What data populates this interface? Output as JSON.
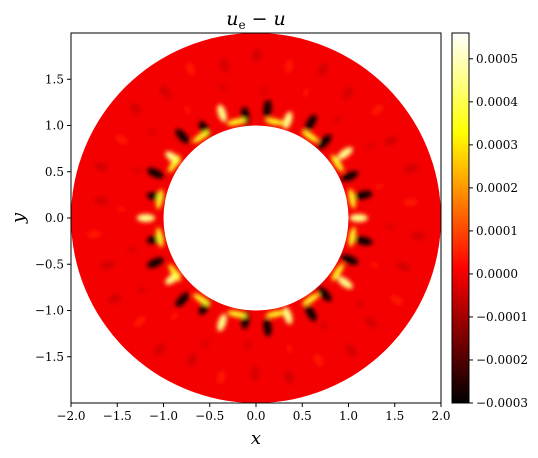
{
  "chart_data": {
    "type": "heatmap",
    "title": "u_e − u",
    "title_main": "u",
    "title_sub": "e",
    "title_rest": " − u",
    "xlabel": "x",
    "ylabel": "y",
    "xlim": [
      -2.0,
      2.0
    ],
    "ylim": [
      -2.0,
      2.0
    ],
    "x_ticks": [
      -2.0,
      -1.5,
      -1.0,
      -0.5,
      0.0,
      0.5,
      1.0,
      1.5,
      2.0
    ],
    "x_tick_labels": [
      "−2.0",
      "−1.5",
      "−1.0",
      "−0.5",
      "0.0",
      "0.5",
      "1.0",
      "1.5",
      "2.0"
    ],
    "y_ticks": [
      -1.5,
      -1.0,
      -0.5,
      0.0,
      0.5,
      1.0,
      1.5
    ],
    "y_tick_labels": [
      "−1.5",
      "−1.0",
      "−0.5",
      "0.0",
      "0.5",
      "1.0",
      "1.5"
    ],
    "domain": {
      "shape": "annulus",
      "inner_radius": 1.0,
      "outer_radius": 2.0,
      "center": [
        0.0,
        0.0
      ]
    },
    "colorbar": {
      "colormap": "hot",
      "vmin": -0.0003,
      "vmax": 0.00056,
      "ticks": [
        0.0005,
        0.0004,
        0.0003,
        0.0002,
        0.0001,
        0.0,
        -0.0001,
        -0.0002,
        -0.0003
      ],
      "tick_labels": [
        "0.0005",
        "0.0004",
        "0.0003",
        "0.0002",
        "0.0001",
        "0.0000",
        "−0.0001",
        "−0.0002",
        "−0.0003"
      ]
    },
    "background_value": 0.0,
    "features": {
      "inner_ring": {
        "radius": 1.15,
        "count": 30,
        "amplitude_low": -0.00028,
        "amplitude_high": 0.00045
      },
      "outer_ring": {
        "radius": 1.72,
        "count": 30,
        "amplitude_low": -4e-05,
        "amplitude_high": 4e-05
      },
      "mid_ring": {
        "radius": 1.42,
        "count": 20,
        "amplitude_low": -3e-05,
        "amplitude_high": 3e-05
      }
    }
  }
}
